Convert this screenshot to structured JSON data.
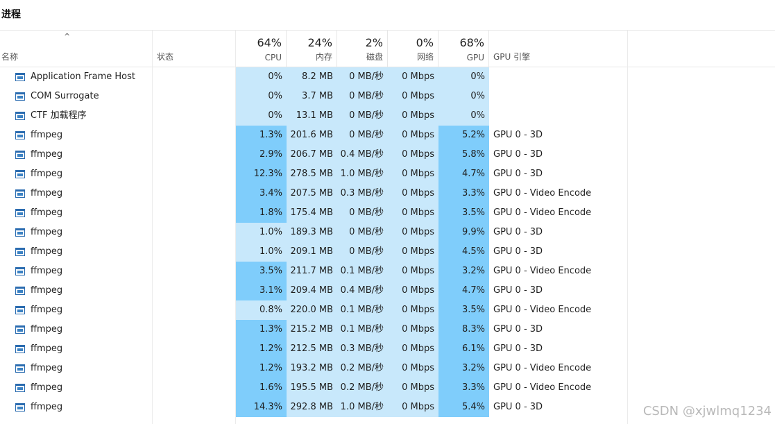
{
  "tab_title": "进程",
  "header": {
    "name_label": "名称",
    "status_label": "状态",
    "cpu": {
      "pct": "64%",
      "label": "CPU"
    },
    "mem": {
      "pct": "24%",
      "label": "内存"
    },
    "disk": {
      "pct": "2%",
      "label": "磁盘"
    },
    "net": {
      "pct": "0%",
      "label": "网络"
    },
    "gpu": {
      "pct": "68%",
      "label": "GPU"
    },
    "engine_label": "GPU 引擎"
  },
  "colors": {
    "light": "#c8e8fb",
    "dark": "#7fcdfb"
  },
  "rows": [
    {
      "name": "Application Frame Host",
      "cpu": "0%",
      "mem": "8.2 MB",
      "disk": "0 MB/秒",
      "net": "0 Mbps",
      "gpu": "0%",
      "engine": "",
      "cpu_shade": "light",
      "gpu_shade": "light"
    },
    {
      "name": "COM Surrogate",
      "cpu": "0%",
      "mem": "3.7 MB",
      "disk": "0 MB/秒",
      "net": "0 Mbps",
      "gpu": "0%",
      "engine": "",
      "cpu_shade": "light",
      "gpu_shade": "light"
    },
    {
      "name": "CTF 加载程序",
      "cpu": "0%",
      "mem": "13.1 MB",
      "disk": "0 MB/秒",
      "net": "0 Mbps",
      "gpu": "0%",
      "engine": "",
      "cpu_shade": "light",
      "gpu_shade": "light"
    },
    {
      "name": "ffmpeg",
      "cpu": "1.3%",
      "mem": "201.6 MB",
      "disk": "0 MB/秒",
      "net": "0 Mbps",
      "gpu": "5.2%",
      "engine": "GPU 0 - 3D",
      "cpu_shade": "dark",
      "gpu_shade": "dark"
    },
    {
      "name": "ffmpeg",
      "cpu": "2.9%",
      "mem": "206.7 MB",
      "disk": "0.4 MB/秒",
      "net": "0 Mbps",
      "gpu": "5.8%",
      "engine": "GPU 0 - 3D",
      "cpu_shade": "dark",
      "gpu_shade": "dark"
    },
    {
      "name": "ffmpeg",
      "cpu": "12.3%",
      "mem": "278.5 MB",
      "disk": "1.0 MB/秒",
      "net": "0 Mbps",
      "gpu": "4.7%",
      "engine": "GPU 0 - 3D",
      "cpu_shade": "dark",
      "gpu_shade": "dark"
    },
    {
      "name": "ffmpeg",
      "cpu": "3.4%",
      "mem": "207.5 MB",
      "disk": "0.3 MB/秒",
      "net": "0 Mbps",
      "gpu": "3.3%",
      "engine": "GPU 0 - Video Encode",
      "cpu_shade": "dark",
      "gpu_shade": "dark"
    },
    {
      "name": "ffmpeg",
      "cpu": "1.8%",
      "mem": "175.4 MB",
      "disk": "0 MB/秒",
      "net": "0 Mbps",
      "gpu": "3.5%",
      "engine": "GPU 0 - Video Encode",
      "cpu_shade": "dark",
      "gpu_shade": "dark"
    },
    {
      "name": "ffmpeg",
      "cpu": "1.0%",
      "mem": "189.3 MB",
      "disk": "0 MB/秒",
      "net": "0 Mbps",
      "gpu": "9.9%",
      "engine": "GPU 0 - 3D",
      "cpu_shade": "light",
      "gpu_shade": "dark"
    },
    {
      "name": "ffmpeg",
      "cpu": "1.0%",
      "mem": "209.1 MB",
      "disk": "0 MB/秒",
      "net": "0 Mbps",
      "gpu": "4.5%",
      "engine": "GPU 0 - 3D",
      "cpu_shade": "light",
      "gpu_shade": "dark"
    },
    {
      "name": "ffmpeg",
      "cpu": "3.5%",
      "mem": "211.7 MB",
      "disk": "0.1 MB/秒",
      "net": "0 Mbps",
      "gpu": "3.2%",
      "engine": "GPU 0 - Video Encode",
      "cpu_shade": "dark",
      "gpu_shade": "dark"
    },
    {
      "name": "ffmpeg",
      "cpu": "3.1%",
      "mem": "209.4 MB",
      "disk": "0.4 MB/秒",
      "net": "0 Mbps",
      "gpu": "4.7%",
      "engine": "GPU 0 - 3D",
      "cpu_shade": "dark",
      "gpu_shade": "dark"
    },
    {
      "name": "ffmpeg",
      "cpu": "0.8%",
      "mem": "220.0 MB",
      "disk": "0.1 MB/秒",
      "net": "0 Mbps",
      "gpu": "3.5%",
      "engine": "GPU 0 - Video Encode",
      "cpu_shade": "light",
      "gpu_shade": "dark"
    },
    {
      "name": "ffmpeg",
      "cpu": "1.3%",
      "mem": "215.2 MB",
      "disk": "0.1 MB/秒",
      "net": "0 Mbps",
      "gpu": "8.3%",
      "engine": "GPU 0 - 3D",
      "cpu_shade": "dark",
      "gpu_shade": "dark"
    },
    {
      "name": "ffmpeg",
      "cpu": "1.2%",
      "mem": "212.5 MB",
      "disk": "0.3 MB/秒",
      "net": "0 Mbps",
      "gpu": "6.1%",
      "engine": "GPU 0 - 3D",
      "cpu_shade": "dark",
      "gpu_shade": "dark"
    },
    {
      "name": "ffmpeg",
      "cpu": "1.2%",
      "mem": "193.2 MB",
      "disk": "0.2 MB/秒",
      "net": "0 Mbps",
      "gpu": "3.2%",
      "engine": "GPU 0 - Video Encode",
      "cpu_shade": "dark",
      "gpu_shade": "dark"
    },
    {
      "name": "ffmpeg",
      "cpu": "1.6%",
      "mem": "195.5 MB",
      "disk": "0.2 MB/秒",
      "net": "0 Mbps",
      "gpu": "3.3%",
      "engine": "GPU 0 - Video Encode",
      "cpu_shade": "dark",
      "gpu_shade": "dark"
    },
    {
      "name": "ffmpeg",
      "cpu": "14.3%",
      "mem": "292.8 MB",
      "disk": "1.0 MB/秒",
      "net": "0 Mbps",
      "gpu": "5.4%",
      "engine": "GPU 0 - 3D",
      "cpu_shade": "dark",
      "gpu_shade": "dark"
    }
  ],
  "watermark": "CSDN @xjwlmq1234"
}
